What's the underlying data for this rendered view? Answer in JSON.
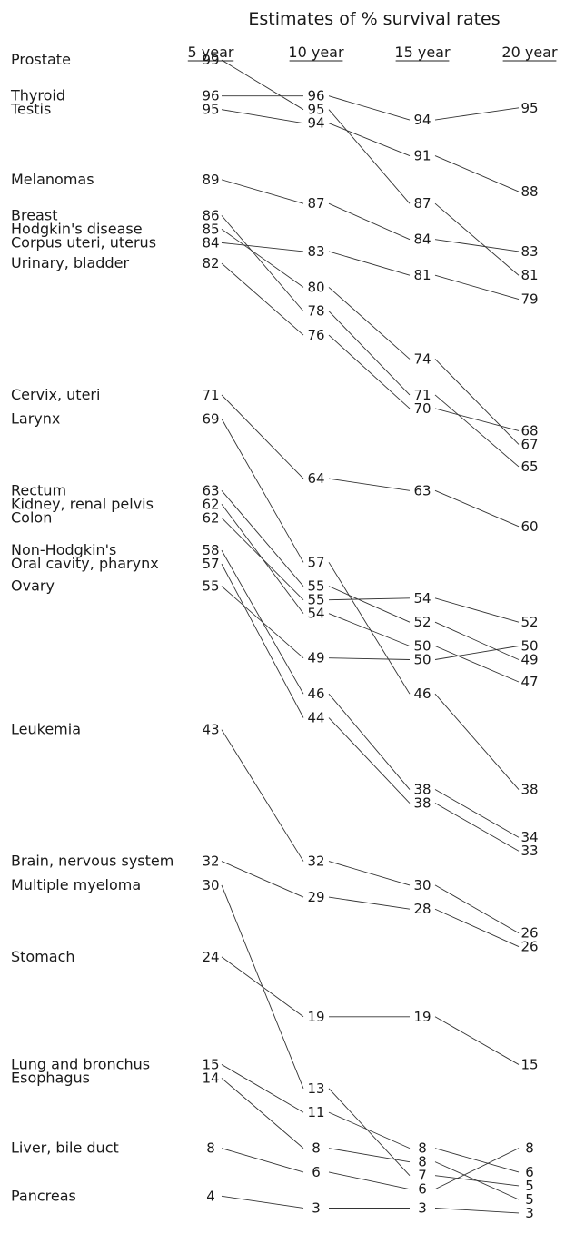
{
  "chart_data": {
    "type": "slopegraph",
    "title": "Estimates of % survival rates",
    "columns": [
      "5 year",
      "10 year",
      "15 year",
      "20 year"
    ],
    "series": [
      {
        "name": "Prostate",
        "values": [
          99,
          95,
          87,
          81
        ]
      },
      {
        "name": "Thyroid",
        "values": [
          96,
          96,
          94,
          95
        ]
      },
      {
        "name": "Testis",
        "values": [
          95,
          94,
          91,
          88
        ]
      },
      {
        "name": "Melanomas",
        "values": [
          89,
          87,
          84,
          83
        ]
      },
      {
        "name": "Breast",
        "values": [
          86,
          78,
          71,
          65
        ]
      },
      {
        "name": "Hodgkin's disease",
        "values": [
          85,
          80,
          74,
          67
        ]
      },
      {
        "name": "Corpus uteri, uterus",
        "values": [
          84,
          83,
          81,
          79
        ]
      },
      {
        "name": "Urinary, bladder",
        "values": [
          82,
          76,
          70,
          68
        ]
      },
      {
        "name": "Cervix, uteri",
        "values": [
          71,
          64,
          63,
          60
        ]
      },
      {
        "name": "Larynx",
        "values": [
          69,
          57,
          46,
          38
        ]
      },
      {
        "name": "Rectum",
        "values": [
          63,
          55,
          52,
          49
        ]
      },
      {
        "name": "Kidney, renal pelvis",
        "values": [
          62,
          54,
          50,
          47
        ]
      },
      {
        "name": "Colon",
        "values": [
          62,
          55,
          54,
          52
        ]
      },
      {
        "name": "Non-Hodgkin's",
        "values": [
          58,
          46,
          38,
          34
        ]
      },
      {
        "name": "Oral cavity, pharynx",
        "values": [
          57,
          44,
          38,
          33
        ]
      },
      {
        "name": "Ovary",
        "values": [
          55,
          49,
          50,
          50
        ]
      },
      {
        "name": "Leukemia",
        "values": [
          43,
          32,
          30,
          26
        ]
      },
      {
        "name": "Brain, nervous system",
        "values": [
          32,
          29,
          28,
          26
        ]
      },
      {
        "name": "Multiple myeloma",
        "values": [
          30,
          13,
          7,
          5
        ]
      },
      {
        "name": "Stomach",
        "values": [
          24,
          19,
          19,
          15
        ]
      },
      {
        "name": "Lung and bronchus",
        "values": [
          15,
          11,
          8,
          6
        ]
      },
      {
        "name": "Esophagus",
        "values": [
          14,
          8,
          8,
          5
        ]
      },
      {
        "name": "Liver, bile duct",
        "values": [
          8,
          6,
          6,
          8
        ]
      },
      {
        "name": "Pancreas",
        "values": [
          4,
          3,
          3,
          3
        ]
      }
    ]
  }
}
